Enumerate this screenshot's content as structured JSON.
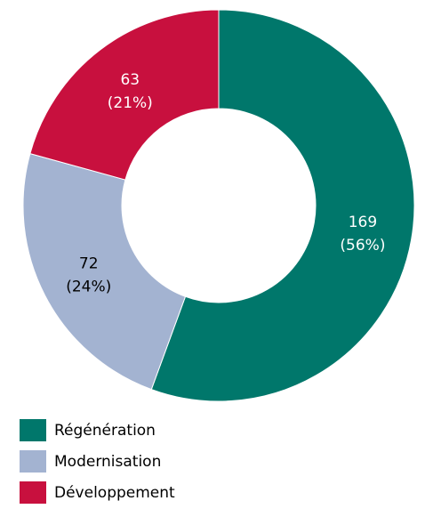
{
  "chart_data": {
    "type": "pie",
    "title": "",
    "categories": [
      "Régénération",
      "Modernisation",
      "Développement"
    ],
    "values": [
      169,
      72,
      63
    ],
    "percent_labels": [
      "(56%)",
      "(24%)",
      "(21%)"
    ],
    "colors": [
      "#00776b",
      "#a3b3d1",
      "#c8103e"
    ],
    "label_colors": [
      "#ffffff",
      "#000000",
      "#ffffff"
    ],
    "donut": true,
    "start": "12 o'clock",
    "direction": "clockwise",
    "legend_placement": "bottom-left"
  }
}
